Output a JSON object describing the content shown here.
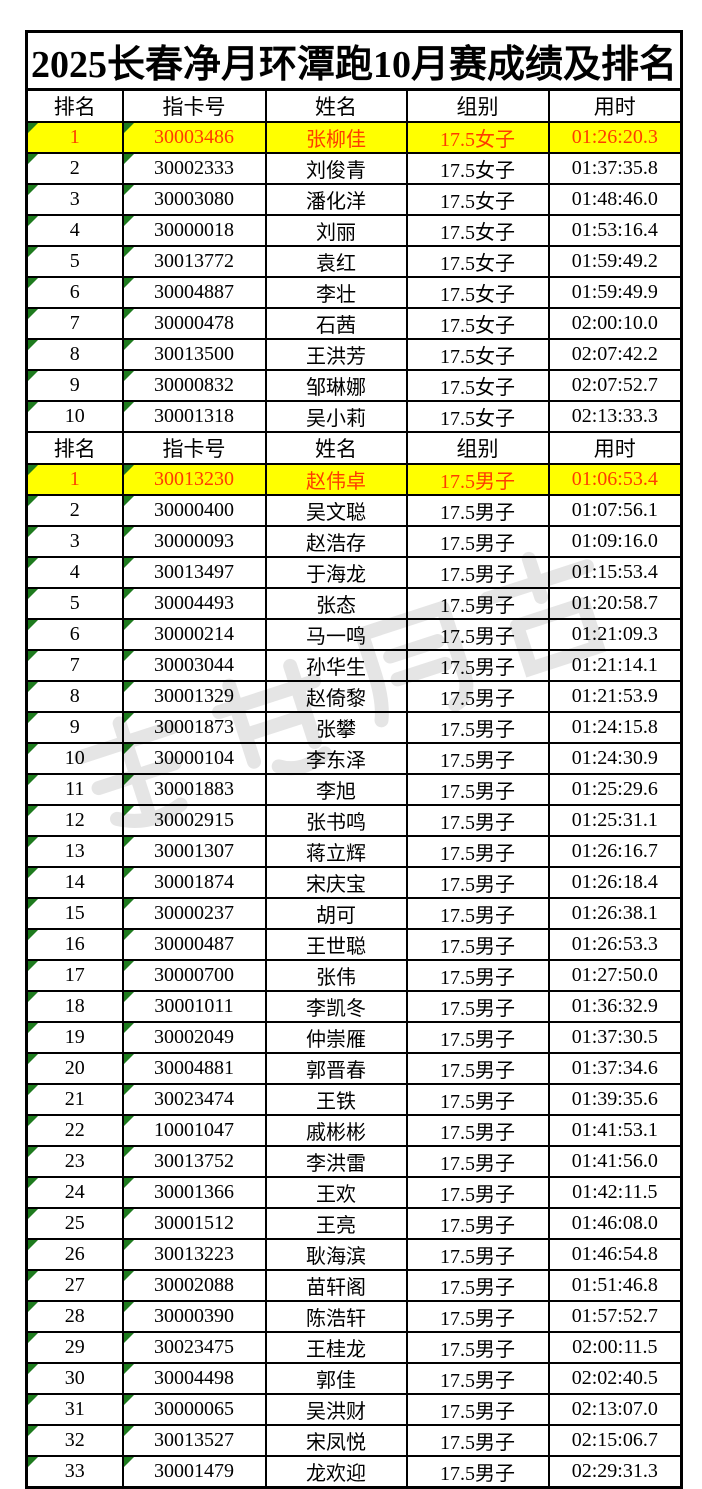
{
  "page": {
    "background": "#ffffff"
  },
  "sheet": {
    "title": "2025长春净月环潭跑10月赛成绩及排名",
    "columns": [
      "排名",
      "指卡号",
      "姓名",
      "组别",
      "用时"
    ],
    "styles": {
      "highlight_row_bg": "#ffff00",
      "highlight_row_text": "#ff3c00",
      "flag_triangle_color": "#1e7b1e",
      "border_color": "#000000",
      "watermark_color": "#d0d0d0"
    },
    "sections": [
      {
        "rows": [
          [
            "1",
            "30003486",
            "张柳佳",
            "17.5女子",
            "01:26:20.3"
          ],
          [
            "2",
            "30002333",
            "刘俊青",
            "17.5女子",
            "01:37:35.8"
          ],
          [
            "3",
            "30003080",
            "潘化洋",
            "17.5女子",
            "01:48:46.0"
          ],
          [
            "4",
            "30000018",
            "刘丽",
            "17.5女子",
            "01:53:16.4"
          ],
          [
            "5",
            "30013772",
            "袁红",
            "17.5女子",
            "01:59:49.2"
          ],
          [
            "6",
            "30004887",
            "李壮",
            "17.5女子",
            "01:59:49.9"
          ],
          [
            "7",
            "30000478",
            "石茜",
            "17.5女子",
            "02:00:10.0"
          ],
          [
            "8",
            "30013500",
            "王洪芳",
            "17.5女子",
            "02:07:42.2"
          ],
          [
            "9",
            "30000832",
            "邹琳娜",
            "17.5女子",
            "02:07:52.7"
          ],
          [
            "10",
            "30001318",
            "吴小莉",
            "17.5女子",
            "02:13:33.3"
          ]
        ]
      },
      {
        "rows": [
          [
            "1",
            "30013230",
            "赵伟卓",
            "17.5男子",
            "01:06:53.4"
          ],
          [
            "2",
            "30000400",
            "吴文聪",
            "17.5男子",
            "01:07:56.1"
          ],
          [
            "3",
            "30000093",
            "赵浩存",
            "17.5男子",
            "01:09:16.0"
          ],
          [
            "4",
            "30013497",
            "于海龙",
            "17.5男子",
            "01:15:53.4"
          ],
          [
            "5",
            "30004493",
            "张态",
            "17.5男子",
            "01:20:58.7"
          ],
          [
            "6",
            "30000214",
            "马一鸣",
            "17.5男子",
            "01:21:09.3"
          ],
          [
            "7",
            "30003044",
            "孙华生",
            "17.5男子",
            "01:21:14.1"
          ],
          [
            "8",
            "30001329",
            "赵倚黎",
            "17.5男子",
            "01:21:53.9"
          ],
          [
            "9",
            "30001873",
            "张攀",
            "17.5男子",
            "01:24:15.8"
          ],
          [
            "10",
            "30000104",
            "李东泽",
            "17.5男子",
            "01:24:30.9"
          ],
          [
            "11",
            "30001883",
            "李旭",
            "17.5男子",
            "01:25:29.6"
          ],
          [
            "12",
            "30002915",
            "张书鸣",
            "17.5男子",
            "01:25:31.1"
          ],
          [
            "13",
            "30001307",
            "蒋立辉",
            "17.5男子",
            "01:26:16.7"
          ],
          [
            "14",
            "30001874",
            "宋庆宝",
            "17.5男子",
            "01:26:18.4"
          ],
          [
            "15",
            "30000237",
            "胡可",
            "17.5男子",
            "01:26:38.1"
          ],
          [
            "16",
            "30000487",
            "王世聪",
            "17.5男子",
            "01:26:53.3"
          ],
          [
            "17",
            "30000700",
            "张伟",
            "17.5男子",
            "01:27:50.0"
          ],
          [
            "18",
            "30001011",
            "李凯冬",
            "17.5男子",
            "01:36:32.9"
          ],
          [
            "19",
            "30002049",
            "仲崇雁",
            "17.5男子",
            "01:37:30.5"
          ],
          [
            "20",
            "30004881",
            "郭晋春",
            "17.5男子",
            "01:37:34.6"
          ],
          [
            "21",
            "30023474",
            "王铁",
            "17.5男子",
            "01:39:35.6"
          ],
          [
            "22",
            "10001047",
            "戚彬彬",
            "17.5男子",
            "01:41:53.1"
          ],
          [
            "23",
            "30013752",
            "李洪雷",
            "17.5男子",
            "01:41:56.0"
          ],
          [
            "24",
            "30001366",
            "王欢",
            "17.5男子",
            "01:42:11.5"
          ],
          [
            "25",
            "30001512",
            "王亮",
            "17.5男子",
            "01:46:08.0"
          ],
          [
            "26",
            "30013223",
            "耿海滨",
            "17.5男子",
            "01:46:54.8"
          ],
          [
            "27",
            "30002088",
            "苗轩阁",
            "17.5男子",
            "01:51:46.8"
          ],
          [
            "28",
            "30000390",
            "陈浩轩",
            "17.5男子",
            "01:57:52.7"
          ],
          [
            "29",
            "30023475",
            "王桂龙",
            "17.5男子",
            "02:00:11.5"
          ],
          [
            "30",
            "30004498",
            "郭佳",
            "17.5男子",
            "02:02:40.5"
          ],
          [
            "31",
            "30000065",
            "吴洪财",
            "17.5男子",
            "02:13:07.0"
          ],
          [
            "32",
            "30013527",
            "宋凤悦",
            "17.5男子",
            "02:15:06.7"
          ],
          [
            "33",
            "30001479",
            "龙欢迎",
            "17.5男子",
            "02:29:31.3"
          ]
        ]
      }
    ]
  }
}
